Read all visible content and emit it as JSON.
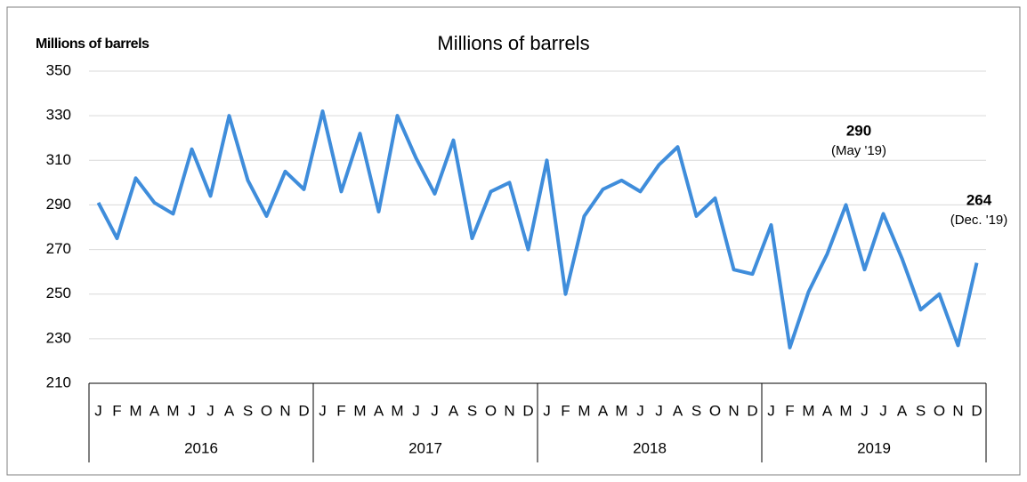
{
  "chart_data": {
    "type": "line",
    "title": "Millions of barrels",
    "y_label": "Millions of barrels",
    "categories": [
      "J",
      "F",
      "M",
      "A",
      "M",
      "J",
      "J",
      "A",
      "S",
      "O",
      "N",
      "D",
      "J",
      "F",
      "M",
      "A",
      "M",
      "J",
      "J",
      "A",
      "S",
      "O",
      "N",
      "D",
      "J",
      "F",
      "M",
      "A",
      "M",
      "J",
      "J",
      "A",
      "S",
      "O",
      "N",
      "D",
      "J",
      "F",
      "M",
      "A",
      "M",
      "J",
      "J",
      "A",
      "S",
      "O",
      "N",
      "D"
    ],
    "years": [
      "2016",
      "2017",
      "2018",
      "2019"
    ],
    "series": [
      {
        "name": "Millions of barrels",
        "color": "#3f8ddb",
        "values": [
          291,
          275,
          302,
          291,
          286,
          315,
          294,
          330,
          301,
          285,
          305,
          297,
          332,
          296,
          322,
          287,
          330,
          311,
          295,
          319,
          275,
          296,
          300,
          270,
          310,
          250,
          285,
          297,
          301,
          296,
          308,
          316,
          285,
          293,
          261,
          259,
          281,
          226,
          251,
          268,
          290,
          261,
          286,
          266,
          243,
          250,
          227,
          264
        ]
      }
    ],
    "ylim": [
      210,
      350
    ],
    "yticks": [
      210,
      230,
      250,
      270,
      290,
      310,
      330,
      350
    ],
    "grid": true,
    "annotations": [
      {
        "text": "290",
        "subtext": "(May '19)"
      },
      {
        "text": "264",
        "subtext": "(Dec. '19)"
      }
    ]
  }
}
